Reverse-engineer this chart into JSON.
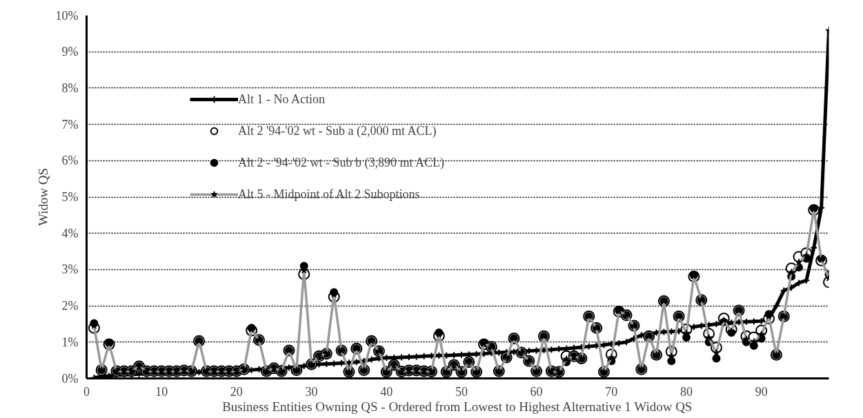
{
  "chart_data": {
    "type": "line",
    "xlabel": "Business Entities Owning QS - Ordered from Lowest to Highest Alternative 1 Widow QS",
    "ylabel": "Widow QS",
    "x": [
      1,
      2,
      3,
      4,
      5,
      6,
      7,
      8,
      9,
      10,
      11,
      12,
      13,
      14,
      15,
      16,
      17,
      18,
      19,
      20,
      21,
      22,
      23,
      24,
      25,
      26,
      27,
      28,
      29,
      30,
      31,
      32,
      33,
      34,
      35,
      36,
      37,
      38,
      39,
      40,
      41,
      42,
      43,
      44,
      45,
      46,
      47,
      48,
      49,
      50,
      51,
      52,
      53,
      54,
      55,
      56,
      57,
      58,
      59,
      60,
      61,
      62,
      63,
      64,
      65,
      66,
      67,
      68,
      69,
      70,
      71,
      72,
      73,
      74,
      75,
      76,
      77,
      78,
      79,
      80,
      81,
      82,
      83,
      84,
      85,
      86,
      87,
      88,
      89,
      90,
      91,
      92,
      93,
      94,
      95,
      96,
      97,
      98,
      99
    ],
    "xlim": [
      0,
      99
    ],
    "xticks": [
      0,
      10,
      20,
      30,
      40,
      50,
      60,
      70,
      80,
      90
    ],
    "ylim": [
      0,
      10
    ],
    "yticks": [
      {
        "value": 0,
        "label": "0%"
      },
      {
        "value": 1,
        "label": "1%"
      },
      {
        "value": 2,
        "label": "2%"
      },
      {
        "value": 3,
        "label": "3%"
      },
      {
        "value": 4,
        "label": "4%"
      },
      {
        "value": 5,
        "label": "5%"
      },
      {
        "value": 6,
        "label": "6%"
      },
      {
        "value": 7,
        "label": "7%"
      },
      {
        "value": 8,
        "label": "8%"
      },
      {
        "value": 9,
        "label": "9%"
      },
      {
        "value": 10,
        "label": "10%"
      }
    ],
    "grid": "y",
    "legend": "top left",
    "series": [
      {
        "name": "Alt 1 - No Action",
        "color": "#000000",
        "marker": "cross",
        "line_style": "solid",
        "values": [
          0.02,
          0.05,
          0.07,
          0.09,
          0.1,
          0.11,
          0.12,
          0.13,
          0.14,
          0.15,
          0.15,
          0.16,
          0.16,
          0.17,
          0.17,
          0.18,
          0.18,
          0.19,
          0.19,
          0.2,
          0.22,
          0.23,
          0.25,
          0.26,
          0.28,
          0.29,
          0.3,
          0.32,
          0.34,
          0.37,
          0.39,
          0.4,
          0.41,
          0.42,
          0.43,
          0.45,
          0.48,
          0.52,
          0.55,
          0.57,
          0.57,
          0.58,
          0.59,
          0.6,
          0.61,
          0.62,
          0.63,
          0.63,
          0.64,
          0.65,
          0.66,
          0.67,
          0.68,
          0.7,
          0.71,
          0.72,
          0.73,
          0.74,
          0.76,
          0.77,
          0.78,
          0.79,
          0.81,
          0.82,
          0.84,
          0.86,
          0.88,
          0.9,
          0.92,
          0.95,
          0.97,
          1.0,
          1.1,
          1.19,
          1.22,
          1.26,
          1.28,
          1.29,
          1.3,
          1.38,
          1.42,
          1.45,
          1.47,
          1.5,
          1.52,
          1.53,
          1.55,
          1.56,
          1.57,
          1.58,
          1.65,
          2.0,
          2.42,
          2.5,
          2.63,
          2.7,
          3.6,
          4.7,
          9.6
        ]
      },
      {
        "name": "Alt 2 '94-'02 wt - Sub a (2,000 mt ACL)",
        "type": "scatter",
        "color": "#ffffff",
        "marker": "circle",
        "values": [
          1.39,
          0.23,
          0.94,
          0.2,
          0.2,
          0.2,
          0.33,
          0.2,
          0.2,
          0.2,
          0.2,
          0.2,
          0.22,
          0.2,
          1.03,
          0.2,
          0.2,
          0.2,
          0.2,
          0.2,
          0.25,
          1.32,
          1.06,
          0.2,
          0.28,
          0.2,
          0.77,
          0.23,
          2.87,
          0.39,
          0.61,
          0.68,
          2.25,
          0.77,
          0.18,
          0.82,
          0.23,
          1.03,
          0.75,
          0.18,
          0.37,
          0.19,
          0.22,
          0.22,
          0.2,
          0.19,
          1.17,
          0.18,
          0.37,
          0.18,
          0.45,
          0.18,
          0.94,
          0.87,
          0.2,
          0.58,
          1.1,
          0.71,
          0.48,
          0.2,
          1.16,
          0.2,
          0.18,
          0.61,
          0.61,
          0.55,
          1.71,
          1.39,
          0.18,
          0.66,
          1.84,
          1.74,
          1.45,
          0.25,
          1.16,
          0.65,
          2.13,
          0.74,
          1.71,
          1.35,
          2.81,
          2.16,
          1.23,
          0.85,
          1.65,
          1.35,
          1.87,
          1.16,
          1.13,
          1.32,
          1.65,
          0.65,
          1.71,
          3.03,
          3.35,
          3.45,
          4.64,
          3.25,
          2.65
        ]
      },
      {
        "name": "Alt 2 - '94-'02 wt - Sub b (3,890 mt ACL)",
        "type": "scatter",
        "color": "#000000",
        "marker": "circle",
        "values": [
          1.52,
          0.23,
          0.97,
          0.2,
          0.2,
          0.2,
          0.33,
          0.2,
          0.2,
          0.2,
          0.2,
          0.2,
          0.22,
          0.2,
          1.03,
          0.2,
          0.2,
          0.2,
          0.2,
          0.2,
          0.25,
          1.39,
          1.06,
          0.2,
          0.28,
          0.2,
          0.77,
          0.23,
          3.1,
          0.39,
          0.61,
          0.68,
          2.37,
          0.77,
          0.18,
          0.82,
          0.23,
          1.03,
          0.75,
          0.18,
          0.37,
          0.19,
          0.22,
          0.22,
          0.2,
          0.19,
          1.26,
          0.18,
          0.37,
          0.18,
          0.45,
          0.18,
          0.97,
          0.87,
          0.2,
          0.58,
          1.1,
          0.71,
          0.48,
          0.2,
          1.16,
          0.2,
          0.18,
          0.45,
          0.61,
          0.55,
          1.71,
          1.39,
          0.18,
          0.48,
          1.87,
          1.74,
          1.45,
          0.25,
          1.16,
          0.65,
          2.13,
          0.48,
          1.71,
          1.13,
          2.84,
          2.16,
          1.0,
          0.55,
          1.55,
          1.26,
          1.87,
          1.0,
          0.9,
          1.1,
          1.77,
          0.65,
          1.71,
          2.81,
          3.06,
          3.3,
          4.68,
          3.3,
          2.87
        ]
      },
      {
        "name": "Alt 5 - Midpoint of Alt 2 Suboptions",
        "color": "#999999",
        "marker": "star",
        "line_style": "solid",
        "values": [
          1.45,
          0.23,
          0.95,
          0.2,
          0.2,
          0.2,
          0.33,
          0.2,
          0.2,
          0.2,
          0.2,
          0.2,
          0.22,
          0.2,
          1.03,
          0.2,
          0.2,
          0.2,
          0.2,
          0.2,
          0.25,
          1.35,
          1.06,
          0.2,
          0.28,
          0.2,
          0.77,
          0.23,
          2.98,
          0.39,
          0.61,
          0.68,
          2.31,
          0.77,
          0.18,
          0.82,
          0.23,
          1.03,
          0.75,
          0.18,
          0.37,
          0.19,
          0.22,
          0.22,
          0.2,
          0.19,
          1.21,
          0.18,
          0.37,
          0.18,
          0.45,
          0.18,
          0.95,
          0.87,
          0.2,
          0.58,
          1.1,
          0.71,
          0.48,
          0.2,
          1.16,
          0.2,
          0.18,
          0.53,
          0.61,
          0.55,
          1.71,
          1.39,
          0.18,
          0.57,
          1.85,
          1.74,
          1.45,
          0.25,
          1.16,
          0.65,
          2.13,
          0.61,
          1.71,
          1.24,
          2.82,
          2.16,
          1.12,
          0.7,
          1.6,
          1.3,
          1.87,
          1.08,
          1.01,
          1.21,
          1.71,
          0.65,
          1.71,
          2.92,
          3.2,
          3.38,
          4.66,
          3.28,
          2.76
        ]
      }
    ]
  }
}
